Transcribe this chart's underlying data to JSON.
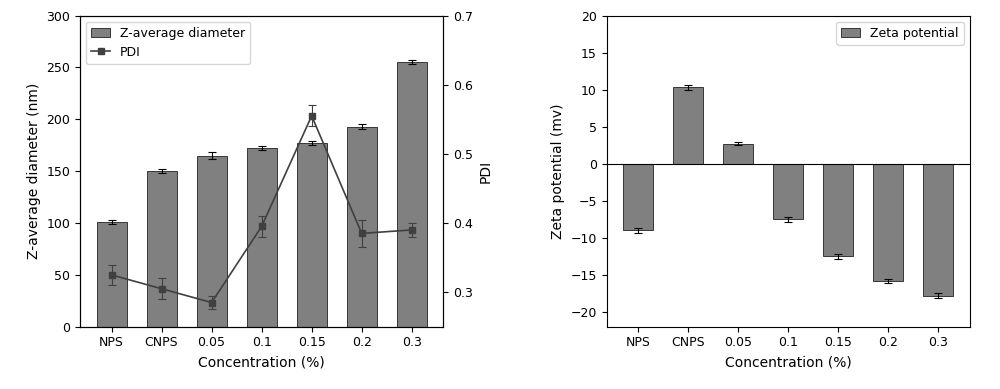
{
  "categories": [
    "NPS",
    "CNPS",
    "0.05",
    "0.1",
    "0.15",
    "0.2",
    "0.3"
  ],
  "bar_diameter": [
    101,
    150,
    165,
    172,
    177,
    193,
    255
  ],
  "bar_diameter_err": [
    2,
    2,
    3,
    2,
    2,
    2,
    2
  ],
  "pdi_values": [
    0.325,
    0.305,
    0.285,
    0.395,
    0.555,
    0.385,
    0.39
  ],
  "pdi_err": [
    0.015,
    0.015,
    0.01,
    0.015,
    0.015,
    0.02,
    0.01
  ],
  "bar_color": "#808080",
  "pdi_line_color": "#404040",
  "pdi_marker": "s",
  "left_ylabel": "Z-average diameter (nm)",
  "right_ylabel": "PDI",
  "xlabel": "Concentration (%)",
  "left_ylim": [
    0,
    300
  ],
  "right_ylim": [
    0.25,
    0.7
  ],
  "left_yticks": [
    0,
    50,
    100,
    150,
    200,
    250,
    300
  ],
  "right_yticks": [
    0.3,
    0.4,
    0.5,
    0.6,
    0.7
  ],
  "legend1_label": "Z-average diameter",
  "legend2_label": "PDI",
  "zeta_values": [
    -9.0,
    10.3,
    2.7,
    -7.5,
    -12.5,
    -15.8,
    -17.8
  ],
  "zeta_err": [
    0.3,
    0.3,
    0.2,
    0.3,
    0.3,
    0.3,
    0.3
  ],
  "zeta_ylabel": "Zeta potential (mv)",
  "zeta_ylim": [
    -22,
    20
  ],
  "zeta_yticks": [
    -20,
    -15,
    -10,
    -5,
    0,
    5,
    10,
    15,
    20
  ],
  "zeta_legend_label": "Zeta potential",
  "bar_color2": "#808080"
}
